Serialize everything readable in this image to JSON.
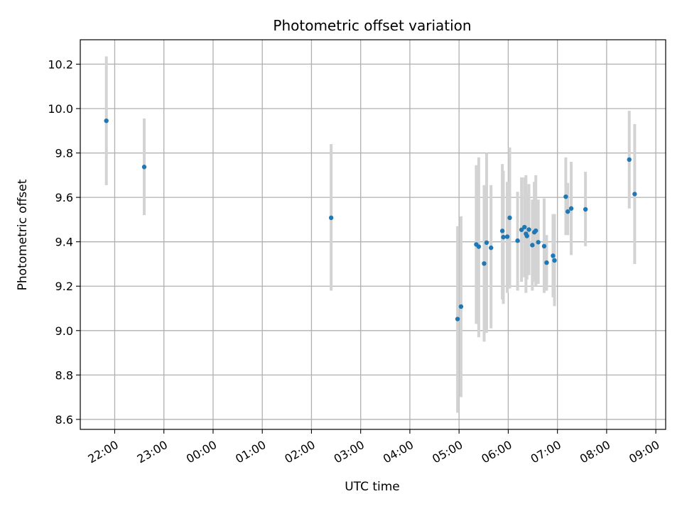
{
  "chart_data": {
    "type": "scatter",
    "title": "Photometric offset variation",
    "xlabel": "UTC time",
    "ylabel": "Photometric offset",
    "x_axis_type": "time",
    "xlim": [
      -2.7,
      9.2
    ],
    "ylim": [
      8.555,
      10.31
    ],
    "grid": true,
    "x_ticks": [
      {
        "value": -2.0,
        "label": "22:00"
      },
      {
        "value": -1.0,
        "label": "23:00"
      },
      {
        "value": 0.0,
        "label": "00:00"
      },
      {
        "value": 1.0,
        "label": "01:00"
      },
      {
        "value": 2.0,
        "label": "02:00"
      },
      {
        "value": 3.0,
        "label": "03:00"
      },
      {
        "value": 4.0,
        "label": "04:00"
      },
      {
        "value": 5.0,
        "label": "05:00"
      },
      {
        "value": 6.0,
        "label": "06:00"
      },
      {
        "value": 7.0,
        "label": "07:00"
      },
      {
        "value": 8.0,
        "label": "08:00"
      },
      {
        "value": 9.0,
        "label": "09:00"
      }
    ],
    "y_ticks": [
      {
        "value": 8.6,
        "label": "8.6"
      },
      {
        "value": 8.8,
        "label": "8.8"
      },
      {
        "value": 9.0,
        "label": "9.0"
      },
      {
        "value": 9.2,
        "label": "9.2"
      },
      {
        "value": 9.4,
        "label": "9.4"
      },
      {
        "value": 9.6,
        "label": "9.6"
      },
      {
        "value": 9.8,
        "label": "9.8"
      },
      {
        "value": 10.0,
        "label": "10.0"
      },
      {
        "value": 10.2,
        "label": "10.2"
      }
    ],
    "colors": {
      "points": "#1f77b4",
      "error_bars": "#d3d3d3"
    },
    "series": [
      {
        "points": [
          {
            "x": -2.17,
            "y": 9.945,
            "ylo": 9.655,
            "yhi": 10.235
          },
          {
            "x": -1.4,
            "y": 9.737,
            "ylo": 9.52,
            "yhi": 9.955
          },
          {
            "x": 2.4,
            "y": 9.508,
            "ylo": 9.18,
            "yhi": 9.84
          },
          {
            "x": 4.97,
            "y": 9.052,
            "ylo": 8.63,
            "yhi": 9.47
          },
          {
            "x": 5.04,
            "y": 9.108,
            "ylo": 8.7,
            "yhi": 9.515
          },
          {
            "x": 5.35,
            "y": 9.388,
            "ylo": 9.03,
            "yhi": 9.745
          },
          {
            "x": 5.4,
            "y": 9.378,
            "ylo": 8.97,
            "yhi": 9.78
          },
          {
            "x": 5.51,
            "y": 9.302,
            "ylo": 8.95,
            "yhi": 9.655
          },
          {
            "x": 5.56,
            "y": 9.396,
            "ylo": 8.99,
            "yhi": 9.8
          },
          {
            "x": 5.65,
            "y": 9.373,
            "ylo": 9.01,
            "yhi": 9.655
          },
          {
            "x": 5.88,
            "y": 9.449,
            "ylo": 9.14,
            "yhi": 9.75
          },
          {
            "x": 5.9,
            "y": 9.421,
            "ylo": 9.12,
            "yhi": 9.72
          },
          {
            "x": 5.98,
            "y": 9.423,
            "ylo": 9.17,
            "yhi": 9.67
          },
          {
            "x": 6.03,
            "y": 9.508,
            "ylo": 9.19,
            "yhi": 9.825
          },
          {
            "x": 6.19,
            "y": 9.405,
            "ylo": 9.18,
            "yhi": 9.625
          },
          {
            "x": 6.27,
            "y": 9.454,
            "ylo": 9.22,
            "yhi": 9.69
          },
          {
            "x": 6.33,
            "y": 9.466,
            "ylo": 9.24,
            "yhi": 9.69
          },
          {
            "x": 6.36,
            "y": 9.436,
            "ylo": 9.17,
            "yhi": 9.7
          },
          {
            "x": 6.38,
            "y": 9.426,
            "ylo": 9.23,
            "yhi": 9.62
          },
          {
            "x": 6.42,
            "y": 9.455,
            "ylo": 9.25,
            "yhi": 9.66
          },
          {
            "x": 6.49,
            "y": 9.385,
            "ylo": 9.18,
            "yhi": 9.59
          },
          {
            "x": 6.53,
            "y": 9.443,
            "ylo": 9.22,
            "yhi": 9.67
          },
          {
            "x": 6.56,
            "y": 9.45,
            "ylo": 9.2,
            "yhi": 9.7
          },
          {
            "x": 6.61,
            "y": 9.398,
            "ylo": 9.21,
            "yhi": 9.59
          },
          {
            "x": 6.73,
            "y": 9.38,
            "ylo": 9.17,
            "yhi": 9.595
          },
          {
            "x": 6.78,
            "y": 9.306,
            "ylo": 9.18,
            "yhi": 9.43
          },
          {
            "x": 6.91,
            "y": 9.337,
            "ylo": 9.15,
            "yhi": 9.525
          },
          {
            "x": 6.94,
            "y": 9.316,
            "ylo": 9.11,
            "yhi": 9.525
          },
          {
            "x": 7.17,
            "y": 9.603,
            "ylo": 9.43,
            "yhi": 9.78
          },
          {
            "x": 7.21,
            "y": 9.536,
            "ylo": 9.43,
            "yhi": 9.665
          },
          {
            "x": 7.28,
            "y": 9.55,
            "ylo": 9.34,
            "yhi": 9.76
          },
          {
            "x": 7.57,
            "y": 9.546,
            "ylo": 9.38,
            "yhi": 9.715
          },
          {
            "x": 8.46,
            "y": 9.77,
            "ylo": 9.55,
            "yhi": 9.99
          },
          {
            "x": 8.57,
            "y": 9.615,
            "ylo": 9.3,
            "yhi": 9.93
          }
        ]
      }
    ]
  }
}
